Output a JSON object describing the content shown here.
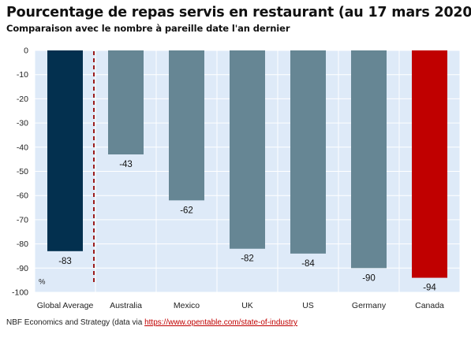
{
  "title": "Pourcentage de repas servis en restaurant (au 17 mars 2020)",
  "subtitle": "Comparaison avec le nombre à pareille date l'an dernier",
  "source": {
    "prefix": "NBF Economics and Strategy (data via ",
    "link_text": "https://www.opentable.com/state-of-industry"
  },
  "chart_data": {
    "type": "bar",
    "categories": [
      "Global Average",
      "Australia",
      "Mexico",
      "UK",
      "US",
      "Germany",
      "Canada"
    ],
    "values": [
      -83,
      -43,
      -62,
      -82,
      -84,
      -90,
      -94
    ],
    "value_labels": [
      "-83",
      "-43",
      "-62",
      "-82",
      "-84",
      "-90",
      "-94"
    ],
    "ylabel": "%",
    "ylim": [
      -100,
      0
    ],
    "yticks": [
      0,
      -10,
      -20,
      -30,
      -40,
      -50,
      -60,
      -70,
      -80,
      -90,
      -100
    ],
    "grid": true,
    "separator_after_category": "Global Average",
    "colors": {
      "Global Average": "#03304f",
      "Australia": "#668694",
      "Mexico": "#668694",
      "UK": "#668694",
      "US": "#668694",
      "Germany": "#668694",
      "Canada": "#c00000"
    },
    "plot_background": "#deeaf8",
    "separator_color": "#9b1c1c"
  }
}
